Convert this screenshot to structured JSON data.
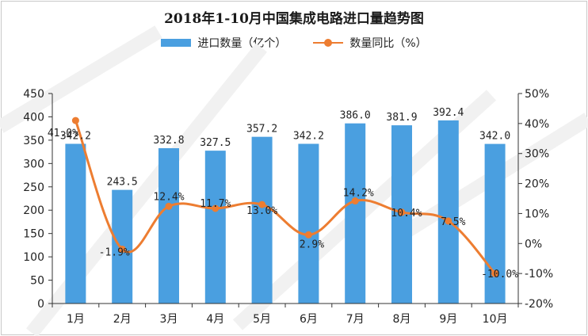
{
  "colors": {
    "bar": "#4a9fe0",
    "line": "#ed7d31"
  },
  "chart_data": {
    "type": "bar",
    "title": "2018年1-10月中国集成电路进口量趋势图",
    "categories": [
      "1月",
      "2月",
      "3月",
      "4月",
      "5月",
      "6月",
      "7月",
      "8月",
      "9月",
      "10月"
    ],
    "series": [
      {
        "name": "进口数量（亿个）",
        "type": "bar",
        "axis": "left",
        "values": [
          342.2,
          243.5,
          332.8,
          327.5,
          357.2,
          342.2,
          386.0,
          381.9,
          392.4,
          342.0
        ],
        "labels": [
          "342.2",
          "243.5",
          "332.8",
          "327.5",
          "357.2",
          "342.2",
          "386.0",
          "381.9",
          "392.4",
          "342.0"
        ]
      },
      {
        "name": "数量同比（%）",
        "type": "line",
        "axis": "right",
        "values": [
          41.0,
          -1.9,
          12.4,
          11.7,
          13.0,
          2.9,
          14.2,
          10.4,
          7.5,
          -10.0
        ],
        "labels": [
          "41.0%",
          "-1.9%",
          "12.4%",
          "11.7%",
          "13.0%",
          "2.9%",
          "14.2%",
          "10.4%",
          "7.5%",
          "-10.0%"
        ]
      }
    ],
    "ylim_left": [
      0,
      450
    ],
    "yticks_left": [
      0,
      50,
      100,
      150,
      200,
      250,
      300,
      350,
      400,
      450
    ],
    "ylim_right": [
      -20,
      50
    ],
    "yticks_right": [
      "-20%",
      "-10%",
      "0%",
      "10%",
      "20%",
      "30%",
      "40%",
      "50%"
    ],
    "grid": false,
    "legend": "top-center"
  }
}
